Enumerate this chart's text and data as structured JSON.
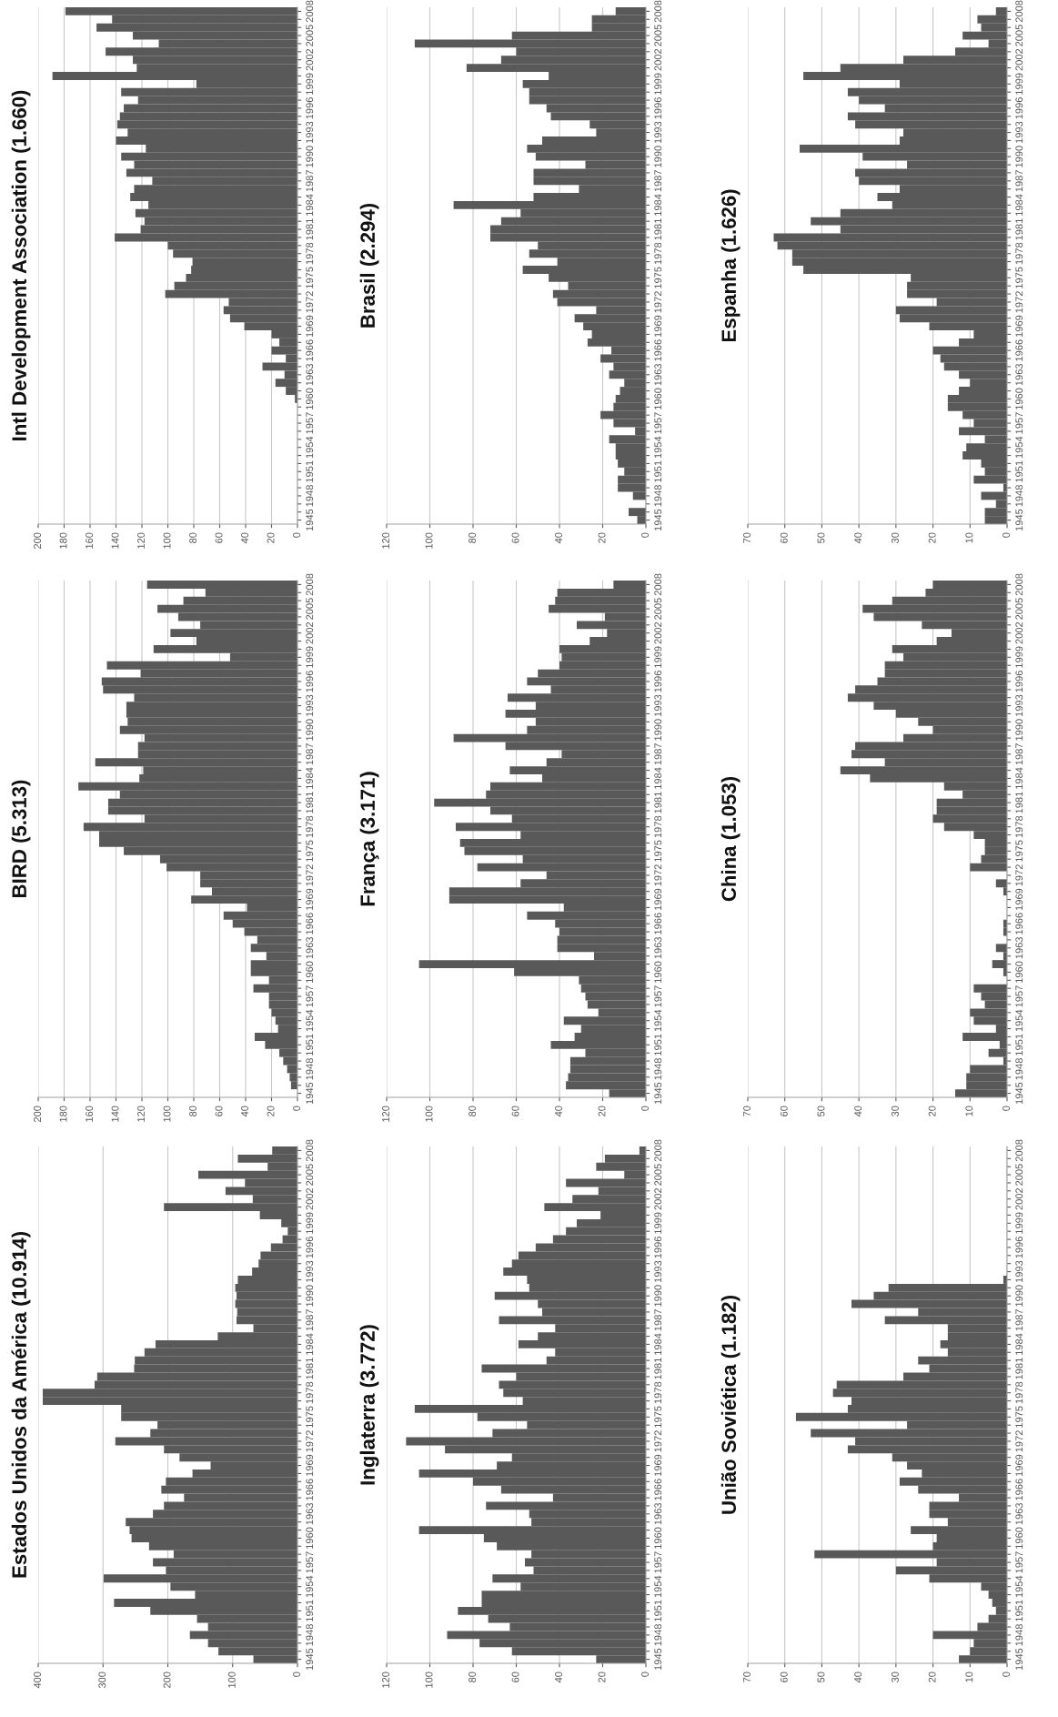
{
  "chart_data": [
    {
      "type": "bar",
      "orientation": "horizontal",
      "title": "Intl Development Association (1.660)",
      "color": "#595959",
      "grid": "x",
      "xlim": [
        200,
        0
      ],
      "xticks": [
        200,
        180,
        160,
        140,
        120,
        100,
        80,
        60,
        40,
        20,
        0
      ],
      "categories": [
        "2008",
        null,
        null,
        "2005",
        null,
        null,
        "2002",
        null,
        null,
        "1999",
        null,
        null,
        "1996",
        null,
        null,
        "1993",
        null,
        null,
        "1990",
        null,
        null,
        "1987",
        null,
        null,
        "1984",
        null,
        null,
        "1981",
        null,
        null,
        "1978",
        null,
        null,
        "1975",
        null,
        null,
        "1972",
        null,
        null,
        "1969",
        null,
        null,
        "1966",
        null,
        null,
        "1963",
        null,
        null,
        "1960",
        null,
        null,
        "1957",
        null,
        null,
        "1954",
        null,
        null,
        "1951",
        null,
        null,
        "1948",
        null,
        null,
        "1945"
      ],
      "values": [
        179,
        143,
        155,
        127,
        107,
        148,
        127,
        124,
        189,
        78,
        136,
        123,
        134,
        137,
        139,
        131,
        140,
        117,
        136,
        126,
        132,
        112,
        126,
        129,
        115,
        125,
        118,
        121,
        141,
        100,
        96,
        81,
        82,
        86,
        95,
        102,
        53,
        57,
        52,
        41,
        20,
        14,
        20,
        9,
        27,
        10,
        17,
        9,
        2,
        0,
        0,
        0,
        0,
        0,
        0,
        0,
        0,
        0,
        0,
        0,
        0,
        0,
        0,
        0
      ]
    },
    {
      "type": "bar",
      "orientation": "horizontal",
      "title": "Brasil (2.294)",
      "color": "#595959",
      "grid": "x",
      "xlim": [
        120,
        0
      ],
      "xticks": [
        120,
        100,
        80,
        60,
        40,
        20,
        0
      ],
      "categories": [
        "2008",
        null,
        null,
        "2005",
        null,
        null,
        "2002",
        null,
        null,
        "1999",
        null,
        null,
        "1996",
        null,
        null,
        "1993",
        null,
        null,
        "1990",
        null,
        null,
        "1987",
        null,
        null,
        "1984",
        null,
        null,
        "1981",
        null,
        null,
        "1978",
        null,
        null,
        "1975",
        null,
        null,
        "1972",
        null,
        null,
        "1969",
        null,
        null,
        "1966",
        null,
        null,
        "1963",
        null,
        null,
        "1960",
        null,
        null,
        "1957",
        null,
        null,
        "1954",
        null,
        null,
        "1951",
        null,
        null,
        "1948",
        null,
        null,
        "1945"
      ],
      "values": [
        14,
        25,
        25,
        62,
        107,
        60,
        67,
        83,
        45,
        57,
        54,
        54,
        46,
        44,
        26,
        23,
        48,
        55,
        51,
        28,
        52,
        52,
        31,
        52,
        89,
        58,
        67,
        72,
        72,
        50,
        54,
        41,
        57,
        45,
        36,
        43,
        41,
        23,
        33,
        29,
        25,
        27,
        16,
        21,
        15,
        17,
        10,
        12,
        14,
        15,
        21,
        15,
        5,
        17,
        14,
        14,
        13,
        10,
        13,
        13,
        6,
        0,
        8,
        4
      ]
    },
    {
      "type": "bar",
      "orientation": "horizontal",
      "title": "Espanha (1.626)",
      "color": "#595959",
      "grid": "x",
      "xlim": [
        70,
        0
      ],
      "xticks": [
        70,
        60,
        50,
        40,
        30,
        20,
        10,
        0
      ],
      "categories": [
        "2008",
        null,
        null,
        "2005",
        null,
        null,
        "2002",
        null,
        null,
        "1999",
        null,
        null,
        "1996",
        null,
        null,
        "1993",
        null,
        null,
        "1990",
        null,
        null,
        "1987",
        null,
        null,
        "1984",
        null,
        null,
        "1981",
        null,
        null,
        "1978",
        null,
        null,
        "1975",
        null,
        null,
        "1972",
        null,
        null,
        "1969",
        null,
        null,
        "1966",
        null,
        null,
        "1963",
        null,
        null,
        "1960",
        null,
        null,
        "1957",
        null,
        null,
        "1954",
        null,
        null,
        "1951",
        null,
        null,
        "1948",
        null,
        null,
        "1945"
      ],
      "values": [
        3,
        8,
        7,
        12,
        5,
        14,
        28,
        45,
        55,
        29,
        43,
        40,
        33,
        43,
        41,
        28,
        29,
        56,
        39,
        27,
        41,
        40,
        29,
        35,
        31,
        45,
        53,
        45,
        63,
        62,
        58,
        58,
        55,
        26,
        27,
        27,
        19,
        30,
        29,
        21,
        9,
        13,
        20,
        18,
        17,
        13,
        10,
        13,
        16,
        16,
        12,
        9,
        13,
        6,
        11,
        12,
        7,
        6,
        9,
        1,
        7,
        3,
        6,
        6
      ]
    },
    {
      "type": "bar",
      "orientation": "horizontal",
      "title": "BIRD (5.313)",
      "color": "#595959",
      "grid": "x",
      "xlim": [
        200,
        0
      ],
      "xticks": [
        200,
        180,
        160,
        140,
        120,
        100,
        80,
        60,
        40,
        20,
        0
      ],
      "categories": [
        "2008",
        null,
        null,
        "2005",
        null,
        null,
        "2002",
        null,
        null,
        "1999",
        null,
        null,
        "1996",
        null,
        null,
        "1993",
        null,
        null,
        "1990",
        null,
        null,
        "1987",
        null,
        null,
        "1984",
        null,
        null,
        "1981",
        null,
        null,
        "1978",
        null,
        null,
        "1975",
        null,
        null,
        "1972",
        null,
        null,
        "1969",
        null,
        null,
        "1966",
        null,
        null,
        "1963",
        null,
        null,
        "1960",
        null,
        null,
        "1957",
        null,
        null,
        "1954",
        null,
        null,
        "1951",
        null,
        null,
        "1948",
        null,
        null,
        "1945"
      ],
      "values": [
        116,
        71,
        88,
        108,
        92,
        75,
        98,
        78,
        111,
        52,
        147,
        121,
        151,
        150,
        126,
        132,
        132,
        131,
        137,
        118,
        123,
        123,
        156,
        119,
        122,
        169,
        137,
        146,
        146,
        118,
        165,
        153,
        153,
        134,
        106,
        101,
        75,
        75,
        66,
        82,
        39,
        57,
        50,
        41,
        31,
        36,
        24,
        36,
        36,
        22,
        34,
        22,
        22,
        20,
        17,
        15,
        33,
        25,
        14,
        11,
        8,
        6,
        5,
        0
      ]
    },
    {
      "type": "bar",
      "orientation": "horizontal",
      "title": "França (3.171)",
      "color": "#595959",
      "grid": "x",
      "xlim": [
        120,
        0
      ],
      "xticks": [
        120,
        100,
        80,
        60,
        40,
        20,
        0
      ],
      "categories": [
        "2008",
        null,
        null,
        "2005",
        null,
        null,
        "2002",
        null,
        null,
        "1999",
        null,
        null,
        "1996",
        null,
        null,
        "1993",
        null,
        null,
        "1990",
        null,
        null,
        "1987",
        null,
        null,
        "1984",
        null,
        null,
        "1981",
        null,
        null,
        "1978",
        null,
        null,
        "1975",
        null,
        null,
        "1972",
        null,
        null,
        "1969",
        null,
        null,
        "1966",
        null,
        null,
        "1963",
        null,
        null,
        "1960",
        null,
        null,
        "1957",
        null,
        null,
        "1954",
        null,
        null,
        "1951",
        null,
        null,
        "1948",
        null,
        null,
        "1945"
      ],
      "values": [
        15,
        41,
        42,
        45,
        19,
        32,
        18,
        26,
        40,
        39,
        40,
        50,
        55,
        44,
        64,
        51,
        65,
        51,
        55,
        89,
        65,
        39,
        46,
        63,
        48,
        72,
        74,
        98,
        72,
        62,
        88,
        58,
        86,
        84,
        57,
        78,
        46,
        58,
        91,
        91,
        38,
        55,
        42,
        40,
        41,
        41,
        24,
        105,
        61,
        31,
        30,
        28,
        27,
        22,
        38,
        30,
        33,
        44,
        28,
        35,
        35,
        36,
        37,
        17
      ]
    },
    {
      "type": "bar",
      "orientation": "horizontal",
      "title": "China (1.053)",
      "color": "#595959",
      "grid": "x",
      "xlim": [
        70,
        0
      ],
      "xticks": [
        70,
        60,
        50,
        40,
        30,
        20,
        10,
        0
      ],
      "categories": [
        "2008",
        null,
        null,
        "2005",
        null,
        null,
        "2002",
        null,
        null,
        "1999",
        null,
        null,
        "1996",
        null,
        null,
        "1993",
        null,
        null,
        "1990",
        null,
        null,
        "1987",
        null,
        null,
        "1984",
        null,
        null,
        "1981",
        null,
        null,
        "1978",
        null,
        null,
        "1975",
        null,
        null,
        "1972",
        null,
        null,
        "1969",
        null,
        null,
        "1966",
        null,
        null,
        "1963",
        null,
        null,
        "1960",
        null,
        null,
        "1957",
        null,
        null,
        "1954",
        null,
        null,
        "1951",
        null,
        null,
        "1948",
        null,
        null,
        "1945"
      ],
      "values": [
        20,
        22,
        31,
        39,
        36,
        23,
        15,
        19,
        31,
        28,
        33,
        33,
        35,
        41,
        43,
        36,
        30,
        24,
        20,
        28,
        41,
        42,
        33,
        45,
        37,
        17,
        12,
        19,
        19,
        20,
        17,
        9,
        6,
        6,
        7,
        10,
        0,
        3,
        1,
        0,
        0,
        0,
        1,
        1,
        0,
        3,
        1,
        4,
        1,
        0,
        9,
        7,
        6,
        10,
        9,
        3,
        12,
        2,
        5,
        1,
        10,
        11,
        11,
        14
      ]
    },
    {
      "type": "bar",
      "orientation": "horizontal",
      "title": "Estados Unidos da América (10.914)",
      "color": "#595959",
      "grid": "x",
      "xlim": [
        400,
        0
      ],
      "xticks": [
        400,
        300,
        200,
        100,
        0
      ],
      "categories": [
        "2008",
        null,
        null,
        "2005",
        null,
        null,
        "2002",
        null,
        null,
        "1999",
        null,
        null,
        "1996",
        null,
        null,
        "1993",
        null,
        null,
        "1990",
        null,
        null,
        "1987",
        null,
        null,
        "1984",
        null,
        null,
        "1981",
        null,
        null,
        "1978",
        null,
        null,
        "1975",
        null,
        null,
        "1972",
        null,
        null,
        "1969",
        null,
        null,
        "1966",
        null,
        null,
        "1963",
        null,
        null,
        "1960",
        null,
        null,
        "1957",
        null,
        null,
        "1954",
        null,
        null,
        "1951",
        null,
        null,
        "1948",
        null,
        null,
        "1945"
      ],
      "values": [
        39,
        92,
        46,
        153,
        81,
        111,
        69,
        206,
        58,
        25,
        15,
        23,
        41,
        57,
        60,
        70,
        92,
        96,
        94,
        96,
        93,
        94,
        68,
        123,
        219,
        236,
        251,
        252,
        309,
        313,
        393,
        393,
        272,
        272,
        216,
        227,
        281,
        206,
        182,
        134,
        162,
        203,
        210,
        175,
        206,
        223,
        265,
        259,
        256,
        229,
        191,
        223,
        203,
        299,
        196,
        158,
        283,
        227,
        155,
        138,
        166,
        138,
        122,
        68
      ]
    },
    {
      "type": "bar",
      "orientation": "horizontal",
      "title": "Inglaterra (3.772)",
      "color": "#595959",
      "grid": "x",
      "xlim": [
        120,
        0
      ],
      "xticks": [
        120,
        100,
        80,
        60,
        40,
        20,
        0
      ],
      "categories": [
        "2008",
        null,
        null,
        "2005",
        null,
        null,
        "2002",
        null,
        null,
        "1999",
        null,
        null,
        "1996",
        null,
        null,
        "1993",
        null,
        null,
        "1990",
        null,
        null,
        "1987",
        null,
        null,
        "1984",
        null,
        null,
        "1981",
        null,
        null,
        "1978",
        null,
        null,
        "1975",
        null,
        null,
        "1972",
        null,
        null,
        "1969",
        null,
        null,
        "1966",
        null,
        null,
        "1963",
        null,
        null,
        "1960",
        null,
        null,
        "1957",
        null,
        null,
        "1954",
        null,
        null,
        "1951",
        null,
        null,
        "1948",
        null,
        null,
        "1945"
      ],
      "values": [
        3,
        19,
        23,
        10,
        37,
        22,
        34,
        47,
        21,
        32,
        37,
        43,
        51,
        59,
        62,
        66,
        55,
        54,
        70,
        50,
        48,
        68,
        42,
        50,
        59,
        42,
        46,
        76,
        60,
        68,
        66,
        57,
        107,
        78,
        55,
        71,
        111,
        93,
        62,
        69,
        105,
        80,
        67,
        43,
        74,
        54,
        53,
        105,
        75,
        69,
        53,
        56,
        52,
        71,
        58,
        76,
        76,
        87,
        73,
        63,
        92,
        77,
        62,
        23
      ]
    },
    {
      "type": "bar",
      "orientation": "horizontal",
      "title": "União Soviética (1.182)",
      "color": "#595959",
      "grid": "x",
      "xlim": [
        70,
        0
      ],
      "xticks": [
        70,
        60,
        50,
        40,
        30,
        20,
        10,
        0
      ],
      "categories": [
        "2008",
        null,
        null,
        "2005",
        null,
        null,
        "2002",
        null,
        null,
        "1999",
        null,
        null,
        "1996",
        null,
        null,
        "1993",
        null,
        null,
        "1990",
        null,
        null,
        "1987",
        null,
        null,
        "1984",
        null,
        null,
        "1981",
        null,
        null,
        "1978",
        null,
        null,
        "1975",
        null,
        null,
        "1972",
        null,
        null,
        "1969",
        null,
        null,
        "1966",
        null,
        null,
        "1963",
        null,
        null,
        "1960",
        null,
        null,
        "1957",
        null,
        null,
        "1954",
        null,
        null,
        "1951",
        null,
        null,
        "1948",
        null,
        null,
        "1945"
      ],
      "values": [
        0,
        0,
        0,
        0,
        0,
        0,
        0,
        0,
        0,
        0,
        0,
        0,
        0,
        0,
        0,
        0,
        1,
        32,
        36,
        42,
        24,
        33,
        16,
        16,
        18,
        16,
        24,
        21,
        28,
        46,
        47,
        42,
        43,
        57,
        27,
        53,
        41,
        43,
        31,
        27,
        23,
        29,
        24,
        13,
        21,
        21,
        16,
        26,
        19,
        20,
        52,
        19,
        30,
        21,
        7,
        5,
        4,
        3,
        5,
        8,
        20,
        9,
        10,
        13
      ]
    }
  ]
}
